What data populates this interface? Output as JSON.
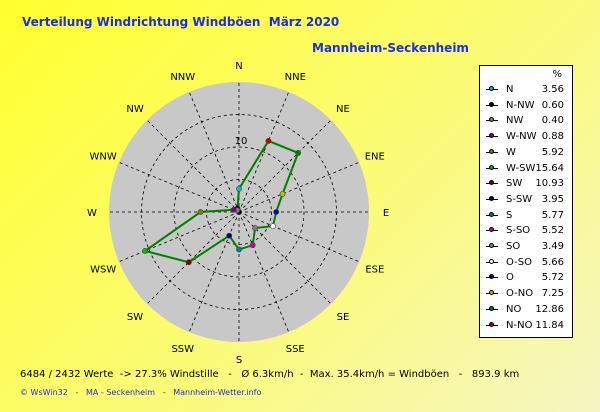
{
  "title": "Verteilung Windrichtung Windböen  März 2020",
  "subtitle": "Mannheim-Seckenheim",
  "legend_unit": "%",
  "stats_line": "6484 / 2432 Werte  -> 27.3% Windstille   -   Ø 6.3km/h  -  Max. 35.4km/h = Windböen   -   893.9 km",
  "credits_line": "© WsWin32   -   MA - Seckenheim   -   Mannheim-Wetter.info",
  "chart_data": {
    "type": "radar",
    "title": "Verteilung Windrichtung Windböen  März 2020",
    "unit": "%",
    "rlim": [
      0,
      20
    ],
    "ring_step": 5,
    "radial_tick_label": "10",
    "direction_labels": [
      "N",
      "NNE",
      "NE",
      "ENE",
      "E",
      "ESE",
      "SE",
      "SSE",
      "S",
      "SSW",
      "SW",
      "WSW",
      "W",
      "WNW",
      "NW",
      "NNW"
    ],
    "series_line_color": "#008000",
    "entries": [
      {
        "label": "N",
        "value": 3.56,
        "color": "#00c0c0"
      },
      {
        "label": "N-NW",
        "value": 0.6,
        "color": "#000000"
      },
      {
        "label": "NW",
        "value": 0.4,
        "color": "#808080"
      },
      {
        "label": "W-NW",
        "value": 0.88,
        "color": "#800080"
      },
      {
        "label": "W",
        "value": 5.92,
        "color": "#808000"
      },
      {
        "label": "W-SW",
        "value": 15.64,
        "color": "#00c000"
      },
      {
        "label": "SW",
        "value": 10.93,
        "color": "#800000"
      },
      {
        "label": "S-SW",
        "value": 3.95,
        "color": "#000080"
      },
      {
        "label": "S",
        "value": 5.77,
        "color": "#008080"
      },
      {
        "label": "S-SO",
        "value": 5.52,
        "color": "#c000c0"
      },
      {
        "label": "SO",
        "value": 3.49,
        "color": "#808080"
      },
      {
        "label": "O-SO",
        "value": 5.66,
        "color": "#ffffff"
      },
      {
        "label": "O",
        "value": 5.72,
        "color": "#0000c0"
      },
      {
        "label": "O-NO",
        "value": 7.25,
        "color": "#c0c000"
      },
      {
        "label": "NO",
        "value": 12.86,
        "color": "#008000"
      },
      {
        "label": "N-NO",
        "value": 11.84,
        "color": "#c00000"
      }
    ]
  }
}
